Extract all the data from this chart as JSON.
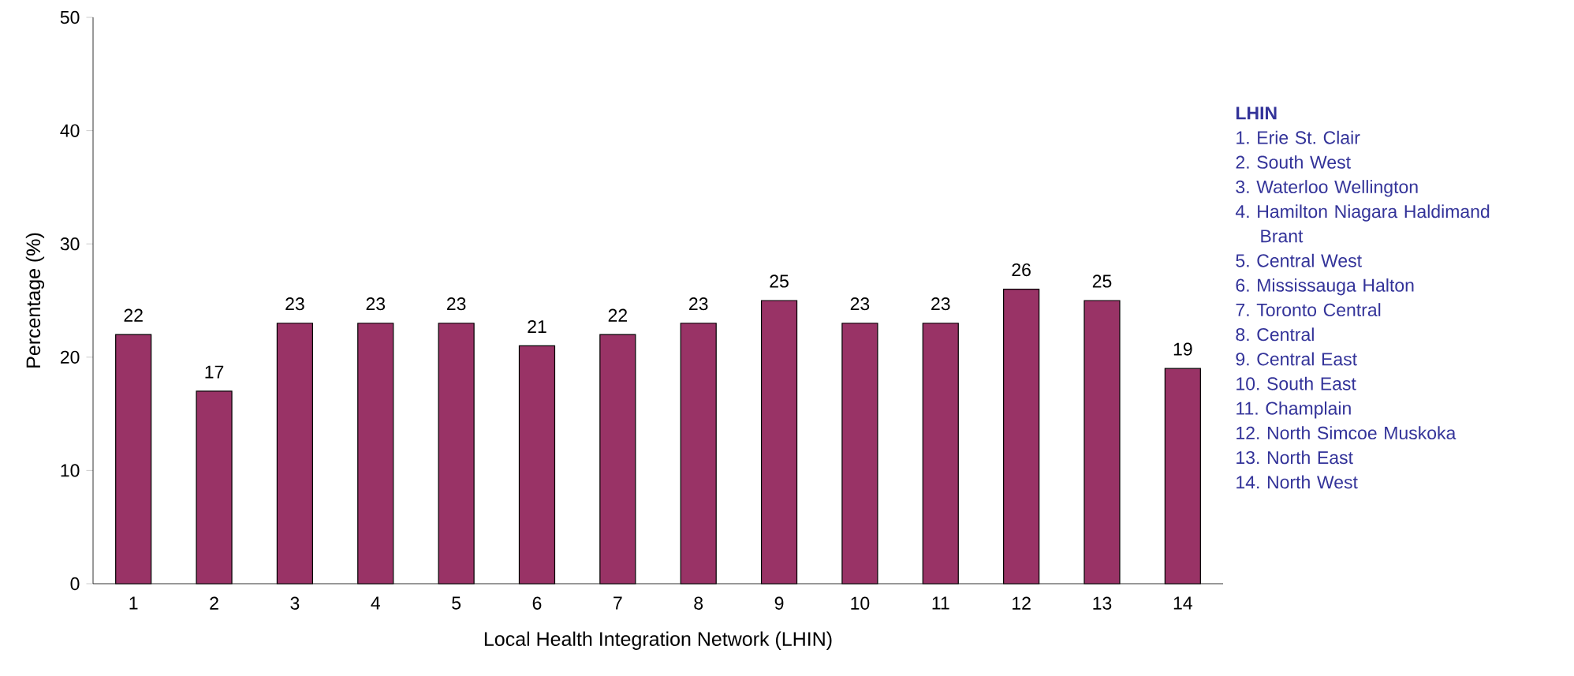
{
  "chart_data": {
    "type": "bar",
    "xlabel": "Local Health Integration Network (LHIN)",
    "ylabel": "Percentage (%)",
    "categories": [
      "1",
      "2",
      "3",
      "4",
      "5",
      "6",
      "7",
      "8",
      "9",
      "10",
      "11",
      "12",
      "13",
      "14"
    ],
    "values": [
      22,
      17,
      23,
      23,
      23,
      21,
      22,
      23,
      25,
      23,
      23,
      26,
      25,
      19
    ],
    "color": "#993366",
    "data_labels": true,
    "ylim": [
      0,
      50
    ],
    "yticks": [
      0,
      10,
      20,
      30,
      40,
      50
    ],
    "grid": false,
    "annotations": [
      "LHIN",
      "1. Erie St. Clair",
      "2. South West",
      "3. Waterloo Wellington",
      "4. Hamilton Niagara Haldimand Brant",
      "5. Central West",
      "6. Mississauga Halton",
      "7. Toronto Central",
      "8. Central",
      "9. Central East",
      "10. South East",
      "11. Champlain",
      "12. North Simcoe Muskoka",
      "13. North East",
      "14. North West"
    ]
  }
}
